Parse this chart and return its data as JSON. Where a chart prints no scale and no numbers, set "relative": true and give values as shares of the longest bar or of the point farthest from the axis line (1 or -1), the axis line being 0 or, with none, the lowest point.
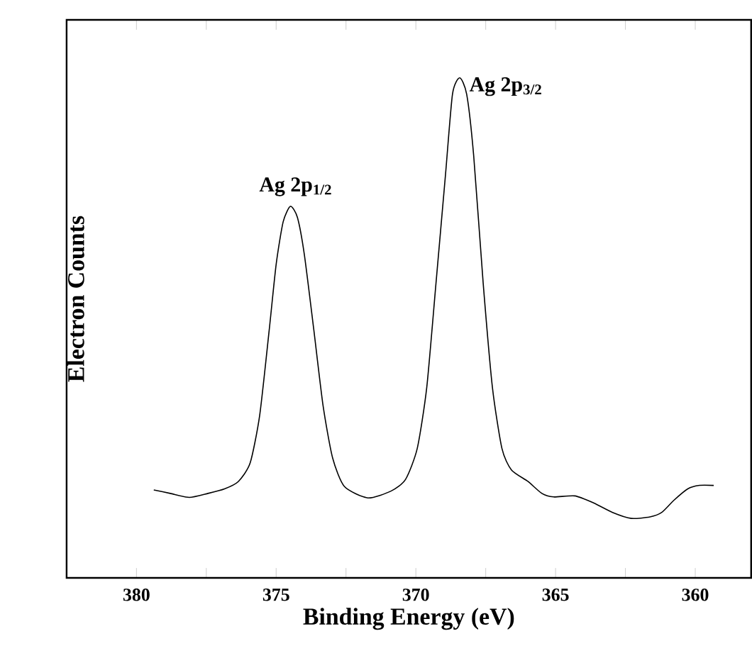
{
  "chart_data": {
    "type": "line",
    "xlabel": "Binding Energy (eV)",
    "ylabel": "Electron Counts",
    "relative": true,
    "xlim": [
      382.5,
      358
    ],
    "xticks": [
      380,
      {
        "value": 377.5,
        "label": null
      },
      375,
      {
        "value": 372.5,
        "label": null
      },
      370,
      {
        "value": 367.5,
        "label": null
      },
      365,
      {
        "value": 362.5,
        "label": null
      },
      360
    ],
    "tick_labels": "x",
    "grid": false,
    "marker": "none",
    "line_style": "solid",
    "series": [
      {
        "color": "#000000",
        "x": [
          379.38,
          378.79,
          378.11,
          377.44,
          376.85,
          376.35,
          375.93,
          375.59,
          375.25,
          375.0,
          374.75,
          374.49,
          374.24,
          373.99,
          373.65,
          373.32,
          372.98,
          372.56,
          371.72,
          370.88,
          370.37,
          369.95,
          369.61,
          369.28,
          368.94,
          368.69,
          368.43,
          368.18,
          367.93,
          367.59,
          367.26,
          366.92,
          366.58,
          365.99,
          365.49,
          365.07,
          364.31,
          363.64,
          362.96,
          362.29,
          361.62,
          361.2,
          360.77,
          360.27,
          359.85,
          359.34
        ],
        "values": [
          0.176,
          0.169,
          0.161,
          0.169,
          0.178,
          0.193,
          0.23,
          0.325,
          0.495,
          0.627,
          0.712,
          0.743,
          0.721,
          0.646,
          0.495,
          0.344,
          0.24,
          0.183,
          0.16,
          0.174,
          0.197,
          0.259,
          0.381,
          0.589,
          0.806,
          0.967,
          1.0,
          0.967,
          0.844,
          0.589,
          0.381,
          0.259,
          0.216,
          0.193,
          0.169,
          0.162,
          0.164,
          0.15,
          0.131,
          0.119,
          0.122,
          0.131,
          0.155,
          0.178,
          0.185,
          0.185
        ]
      }
    ],
    "annotations": [
      {
        "text": "Ag 2p$_{1/2}$",
        "x": 374.5,
        "y": 0.743
      },
      {
        "text": "Ag 2p$_{3/2}$",
        "x": 368.4,
        "y": 1.0
      }
    ]
  }
}
